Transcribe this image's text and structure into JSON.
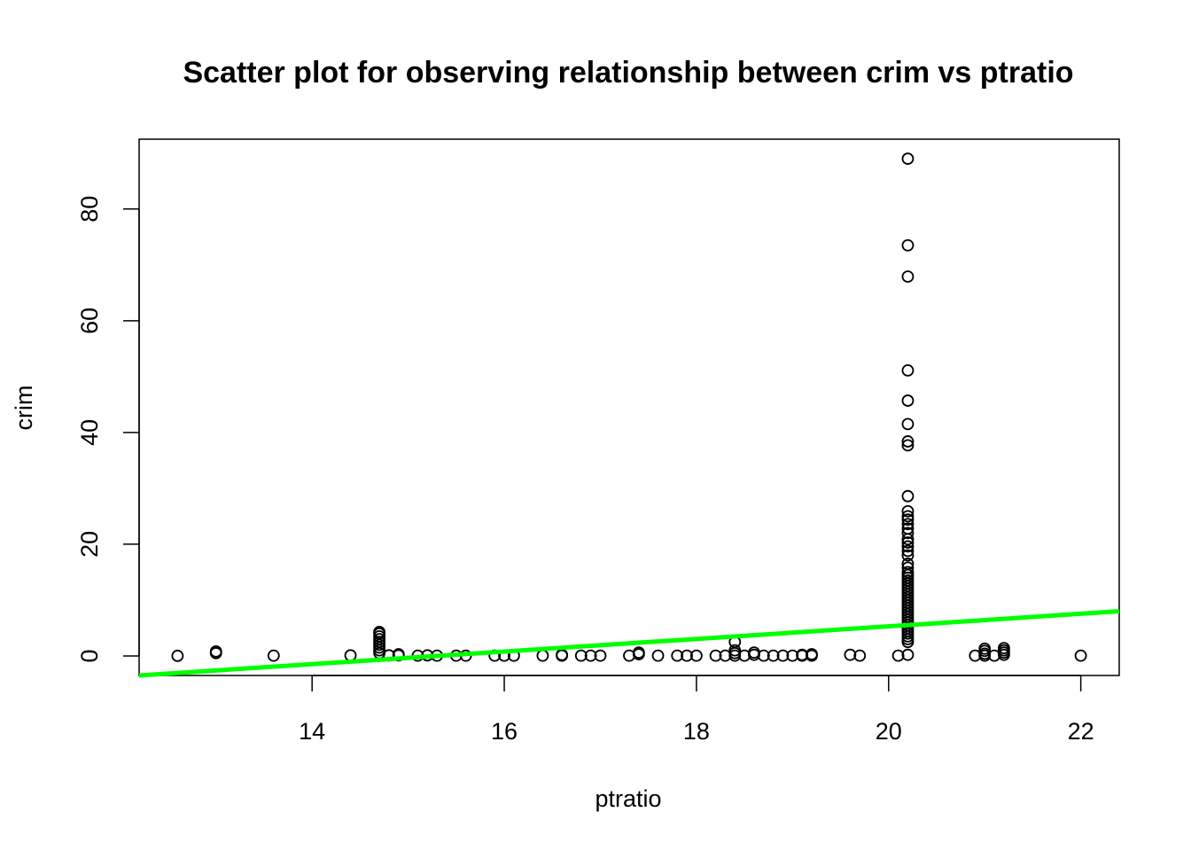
{
  "chart_data": {
    "type": "scatter",
    "title": "Scatter plot for observing relationship between crim vs ptratio",
    "xlabel": "ptratio",
    "ylabel": "crim",
    "xlim": [
      12.2,
      22.4
    ],
    "ylim": [
      -3.5,
      92.5
    ],
    "x_ticks": [
      14,
      16,
      18,
      20,
      22
    ],
    "y_ticks": [
      0,
      20,
      40,
      60,
      80
    ],
    "grid": false,
    "legend": "none",
    "point_color": "#000000",
    "fit_line": {
      "color": "#00ff00",
      "x": [
        12.2,
        22.4
      ],
      "y": [
        -3.5,
        8.0
      ]
    },
    "points": [
      [
        12.6,
        0.02
      ],
      [
        13.0,
        0.5
      ],
      [
        13.0,
        0.8
      ],
      [
        13.6,
        0.05
      ],
      [
        14.4,
        0.1
      ],
      [
        14.7,
        0.5
      ],
      [
        14.7,
        1.0
      ],
      [
        14.7,
        1.5
      ],
      [
        14.7,
        2.0
      ],
      [
        14.7,
        2.5
      ],
      [
        14.7,
        3.0
      ],
      [
        14.7,
        3.5
      ],
      [
        14.7,
        4.0
      ],
      [
        14.7,
        4.3
      ],
      [
        14.8,
        0.1
      ],
      [
        14.9,
        0.1
      ],
      [
        14.9,
        0.3
      ],
      [
        15.1,
        0.05
      ],
      [
        15.2,
        0.1
      ],
      [
        15.3,
        0.05
      ],
      [
        15.5,
        0.05
      ],
      [
        15.6,
        0.05
      ],
      [
        15.9,
        0.05
      ],
      [
        16.0,
        0.05
      ],
      [
        16.1,
        0.05
      ],
      [
        16.4,
        0.05
      ],
      [
        16.6,
        0.05
      ],
      [
        16.6,
        0.2
      ],
      [
        16.8,
        0.05
      ],
      [
        16.9,
        0.05
      ],
      [
        17.0,
        0.05
      ],
      [
        17.3,
        0.05
      ],
      [
        17.4,
        0.3
      ],
      [
        17.4,
        0.6
      ],
      [
        17.6,
        0.05
      ],
      [
        17.8,
        0.05
      ],
      [
        17.9,
        0.05
      ],
      [
        18.0,
        0.05
      ],
      [
        18.2,
        0.05
      ],
      [
        18.3,
        0.05
      ],
      [
        18.4,
        0.05
      ],
      [
        18.4,
        0.5
      ],
      [
        18.4,
        1.0
      ],
      [
        18.4,
        2.5
      ],
      [
        18.5,
        0.05
      ],
      [
        18.6,
        0.2
      ],
      [
        18.6,
        0.6
      ],
      [
        18.7,
        0.05
      ],
      [
        18.8,
        0.05
      ],
      [
        18.9,
        0.05
      ],
      [
        19.0,
        0.05
      ],
      [
        19.1,
        0.05
      ],
      [
        19.1,
        0.2
      ],
      [
        19.2,
        0.05
      ],
      [
        19.2,
        0.3
      ],
      [
        19.6,
        0.2
      ],
      [
        19.7,
        0.05
      ],
      [
        20.1,
        0.05
      ],
      [
        20.2,
        0.2
      ],
      [
        20.2,
        2.5
      ],
      [
        20.2,
        3.0
      ],
      [
        20.2,
        3.5
      ],
      [
        20.2,
        4.0
      ],
      [
        20.2,
        4.5
      ],
      [
        20.2,
        5.0
      ],
      [
        20.2,
        5.5
      ],
      [
        20.2,
        6.0
      ],
      [
        20.2,
        6.5
      ],
      [
        20.2,
        7.0
      ],
      [
        20.2,
        7.5
      ],
      [
        20.2,
        8.0
      ],
      [
        20.2,
        8.5
      ],
      [
        20.2,
        9.0
      ],
      [
        20.2,
        9.5
      ],
      [
        20.2,
        10.0
      ],
      [
        20.2,
        10.5
      ],
      [
        20.2,
        11.0
      ],
      [
        20.2,
        11.5
      ],
      [
        20.2,
        12.0
      ],
      [
        20.2,
        12.5
      ],
      [
        20.2,
        13.0
      ],
      [
        20.2,
        13.5
      ],
      [
        20.2,
        14.0
      ],
      [
        20.2,
        14.5
      ],
      [
        20.2,
        15.0
      ],
      [
        20.2,
        15.8
      ],
      [
        20.2,
        16.5
      ],
      [
        20.2,
        18.0
      ],
      [
        20.2,
        18.8
      ],
      [
        20.2,
        19.6
      ],
      [
        20.2,
        20.3
      ],
      [
        20.2,
        20.9
      ],
      [
        20.2,
        22.0
      ],
      [
        20.2,
        22.8
      ],
      [
        20.2,
        23.6
      ],
      [
        20.2,
        24.4
      ],
      [
        20.2,
        25.0
      ],
      [
        20.2,
        25.9
      ],
      [
        20.2,
        28.6
      ],
      [
        20.2,
        37.7
      ],
      [
        20.2,
        38.4
      ],
      [
        20.2,
        41.5
      ],
      [
        20.2,
        45.7
      ],
      [
        20.2,
        51.1
      ],
      [
        20.2,
        67.9
      ],
      [
        20.2,
        73.5
      ],
      [
        20.2,
        89.0
      ],
      [
        20.9,
        0.05
      ],
      [
        21.0,
        0.05
      ],
      [
        21.0,
        0.4
      ],
      [
        21.0,
        0.9
      ],
      [
        21.0,
        1.3
      ],
      [
        21.1,
        0.05
      ],
      [
        21.2,
        0.2
      ],
      [
        21.2,
        0.6
      ],
      [
        21.2,
        1.0
      ],
      [
        21.2,
        1.4
      ],
      [
        22.0,
        0.05
      ]
    ]
  }
}
